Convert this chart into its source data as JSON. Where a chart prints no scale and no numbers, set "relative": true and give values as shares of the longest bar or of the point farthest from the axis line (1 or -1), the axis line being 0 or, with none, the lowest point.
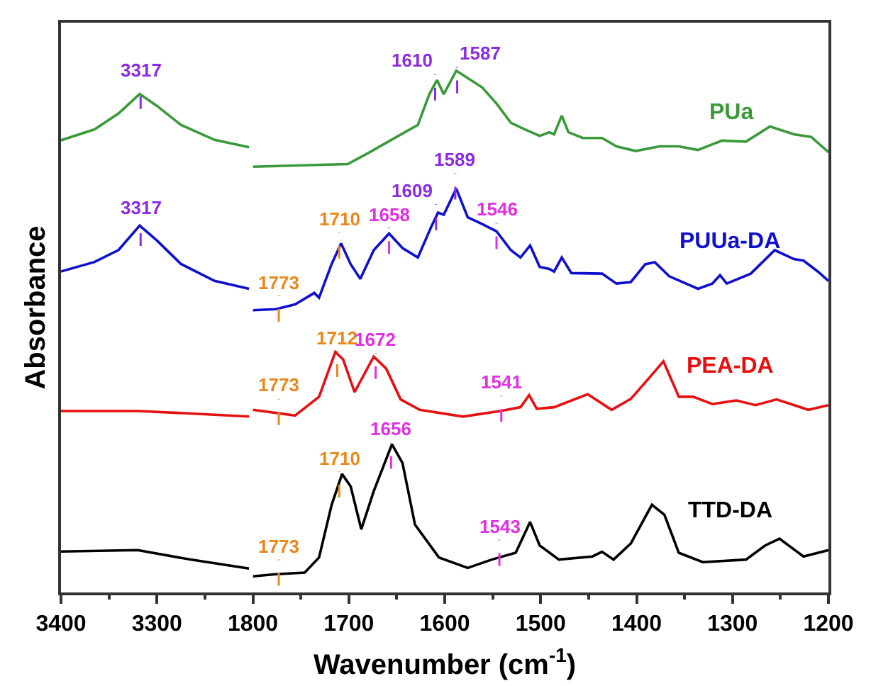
{
  "chart_data": [
    {
      "type": "line",
      "relative": true,
      "ylabel": "Absorbance",
      "xlim": [
        3400,
        3200
      ],
      "xticks": [
        3400,
        3300
      ],
      "legend": false,
      "tick_labels": "x",
      "line_style": "solid",
      "marker": "none",
      "series": [
        {
          "color": "#3a9a3a",
          "x": [
            3400,
            3365,
            3340,
            3318,
            3300,
            3275,
            3240,
            3204
          ],
          "values": [
            0.907,
            0.929,
            0.961,
            1.0,
            0.976,
            0.938,
            0.908,
            0.893
          ]
        },
        {
          "color": "#1010cc",
          "x": [
            3400,
            3365,
            3340,
            3318,
            3300,
            3275,
            3240,
            3204
          ],
          "values": [
            0.644,
            0.663,
            0.687,
            0.736,
            0.706,
            0.659,
            0.625,
            0.609
          ]
        },
        {
          "color": "#e61010",
          "x": [
            3400,
            3320,
            3265,
            3204
          ],
          "values": [
            0.364,
            0.364,
            0.359,
            0.353
          ]
        },
        {
          "color": "#000000",
          "x": [
            3400,
            3320,
            3265,
            3204
          ],
          "values": [
            0.082,
            0.085,
            0.066,
            0.048
          ]
        }
      ],
      "annotations": [
        {
          "text": "3317",
          "x": 3317,
          "y": 0.995
        },
        {
          "text": "3317",
          "x": 3317,
          "y": 0.72
        }
      ]
    },
    {
      "type": "line",
      "relative": true,
      "xlabel": "Wavenumber (cm$^{-1}$)",
      "xlim": [
        1800,
        1200
      ],
      "xticks": [
        1800,
        1700,
        1600,
        1500,
        1400,
        1300,
        1200
      ],
      "legend": false,
      "tick_labels": "x",
      "line_style": "solid",
      "marker": "none",
      "series": [
        {
          "name": "PUa",
          "color": "#3a9a3a",
          "x": [
            1800,
            1701,
            1676,
            1656,
            1628,
            1616,
            1608,
            1601,
            1588,
            1561,
            1546,
            1531,
            1516,
            1501,
            1491,
            1486,
            1478,
            1471,
            1456,
            1436,
            1421,
            1401,
            1376,
            1356,
            1336,
            1311,
            1286,
            1261,
            1236,
            1218,
            1200
          ],
          "values": [
            0.816,
            0.821,
            0.846,
            0.867,
            0.896,
            0.955,
            0.982,
            0.955,
            1.0,
            0.968,
            0.937,
            0.9,
            0.887,
            0.875,
            0.882,
            0.878,
            0.914,
            0.882,
            0.871,
            0.871,
            0.855,
            0.846,
            0.855,
            0.855,
            0.848,
            0.866,
            0.864,
            0.893,
            0.878,
            0.873,
            0.844
          ]
        },
        {
          "name": "PUUa-DA",
          "color": "#1010cc",
          "x": [
            1800,
            1776,
            1756,
            1736,
            1731,
            1718,
            1708,
            1698,
            1688,
            1674,
            1658,
            1644,
            1628,
            1614,
            1607,
            1601,
            1588,
            1576,
            1561,
            1546,
            1531,
            1521,
            1511,
            1501,
            1491,
            1486,
            1478,
            1468,
            1436,
            1421,
            1406,
            1391,
            1381,
            1366,
            1336,
            1321,
            1313,
            1306,
            1281,
            1256,
            1236,
            1226,
            1211,
            1200
          ],
          "values": [
            0.541,
            0.543,
            0.552,
            0.574,
            0.565,
            0.629,
            0.669,
            0.629,
            0.601,
            0.656,
            0.688,
            0.66,
            0.642,
            0.701,
            0.728,
            0.724,
            0.774,
            0.719,
            0.706,
            0.692,
            0.656,
            0.642,
            0.665,
            0.624,
            0.62,
            0.615,
            0.642,
            0.612,
            0.611,
            0.592,
            0.595,
            0.629,
            0.633,
            0.606,
            0.582,
            0.592,
            0.608,
            0.592,
            0.611,
            0.656,
            0.639,
            0.636,
            0.615,
            0.597
          ]
        },
        {
          "name": "PEA-DA",
          "color": "#e61010",
          "x": [
            1800,
            1756,
            1731,
            1714,
            1706,
            1694,
            1674,
            1661,
            1646,
            1626,
            1581,
            1541,
            1521,
            1512,
            1504,
            1486,
            1451,
            1426,
            1406,
            1386,
            1372,
            1356,
            1341,
            1321,
            1296,
            1276,
            1254,
            1221,
            1200
          ],
          "values": [
            0.35,
            0.339,
            0.375,
            0.461,
            0.447,
            0.384,
            0.452,
            0.429,
            0.37,
            0.35,
            0.337,
            0.348,
            0.355,
            0.378,
            0.352,
            0.355,
            0.38,
            0.35,
            0.371,
            0.413,
            0.443,
            0.375,
            0.375,
            0.361,
            0.368,
            0.359,
            0.37,
            0.35,
            0.359
          ]
        },
        {
          "name": "TTD-DA",
          "color": "#000000",
          "x": [
            1800,
            1776,
            1746,
            1731,
            1718,
            1707,
            1698,
            1687,
            1674,
            1655,
            1644,
            1631,
            1606,
            1576,
            1551,
            1526,
            1511,
            1501,
            1481,
            1446,
            1436,
            1424,
            1406,
            1384,
            1371,
            1356,
            1331,
            1286,
            1266,
            1251,
            1226,
            1200
          ],
          "values": [
            0.031,
            0.035,
            0.038,
            0.067,
            0.167,
            0.227,
            0.203,
            0.121,
            0.194,
            0.284,
            0.248,
            0.13,
            0.067,
            0.047,
            0.063,
            0.076,
            0.135,
            0.09,
            0.063,
            0.069,
            0.078,
            0.063,
            0.094,
            0.168,
            0.149,
            0.076,
            0.058,
            0.063,
            0.09,
            0.103,
            0.069,
            0.081
          ]
        }
      ],
      "annotations": [
        {
          "text": "1610",
          "x": 1610,
          "y": 0.968
        },
        {
          "text": "1587",
          "x": 1587,
          "y": 0.982
        },
        {
          "text": "1710",
          "x": 1710,
          "y": 0.665
        },
        {
          "text": "1658",
          "x": 1658,
          "y": 0.674
        },
        {
          "text": "1609",
          "x": 1609,
          "y": 0.719
        },
        {
          "text": "1589",
          "x": 1589,
          "y": 0.778
        },
        {
          "text": "1546",
          "x": 1546,
          "y": 0.683
        },
        {
          "text": "1773",
          "x": 1773,
          "y": 0.544
        },
        {
          "text": "1712",
          "x": 1712,
          "y": 0.438
        },
        {
          "text": "1672",
          "x": 1672,
          "y": 0.434
        },
        {
          "text": "1541",
          "x": 1541,
          "y": 0.352
        },
        {
          "text": "1773",
          "x": 1773,
          "y": 0.346
        },
        {
          "text": "1656",
          "x": 1656,
          "y": 0.262
        },
        {
          "text": "1710",
          "x": 1710,
          "y": 0.207
        },
        {
          "text": "1543",
          "x": 1543,
          "y": 0.076
        },
        {
          "text": "1773",
          "x": 1773,
          "y": 0.038
        }
      ]
    }
  ]
}
